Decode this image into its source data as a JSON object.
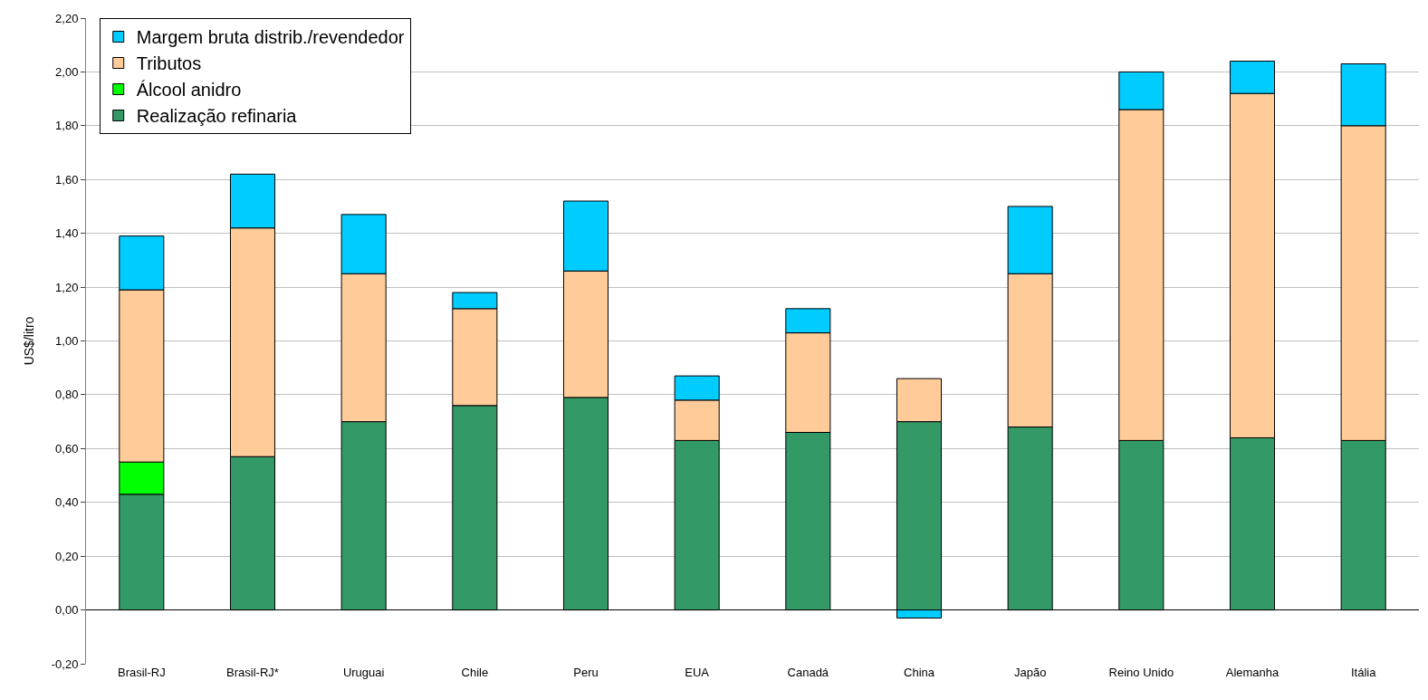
{
  "chart_data": {
    "type": "bar",
    "stacked": true,
    "ylabel": "US$/litro",
    "categories": [
      "Brasil-RJ",
      "Brasil-RJ*",
      "Uruguai",
      "Chile",
      "Peru",
      "EUA",
      "Canadá",
      "China",
      "Japão",
      "Reino Unido",
      "Alemanha",
      "Itália"
    ],
    "series": [
      {
        "name": "Realização refinaria",
        "color": "#339966",
        "values": [
          0.43,
          0.57,
          0.7,
          0.76,
          0.79,
          0.63,
          0.66,
          0.7,
          0.68,
          0.63,
          0.64,
          0.63
        ]
      },
      {
        "name": "Álcool anidro",
        "color": "#00ff00",
        "values": [
          0.12,
          null,
          null,
          null,
          null,
          null,
          null,
          null,
          null,
          null,
          null,
          null
        ]
      },
      {
        "name": "Tributos",
        "color": "#ffcc99",
        "values": [
          0.64,
          0.85,
          0.55,
          0.36,
          0.47,
          0.15,
          0.37,
          0.16,
          0.57,
          1.23,
          1.28,
          1.17
        ]
      },
      {
        "name": "Margem bruta distrib./revendedor",
        "color": "#00ccff",
        "values": [
          0.2,
          0.2,
          0.22,
          0.06,
          0.26,
          0.09,
          0.09,
          -0.03,
          0.25,
          0.14,
          0.12,
          0.23
        ]
      }
    ],
    "ylim": [
      -0.2,
      2.2
    ],
    "yticks": [
      {
        "value": -0.2,
        "label": "-0,20"
      },
      {
        "value": 0,
        "label": "0,00"
      },
      {
        "value": 0.2,
        "label": "0,20"
      },
      {
        "value": 0.4,
        "label": "0,40"
      },
      {
        "value": 0.6,
        "label": "0,60"
      },
      {
        "value": 0.8,
        "label": "0,80"
      },
      {
        "value": 1.0,
        "label": "1,00"
      },
      {
        "value": 1.2,
        "label": "1,20"
      },
      {
        "value": 1.4,
        "label": "1,40"
      },
      {
        "value": 1.6,
        "label": "1,60"
      },
      {
        "value": 1.8,
        "label": "1,80"
      },
      {
        "value": 2.0,
        "label": "2,00"
      },
      {
        "value": 2.2,
        "label": "2,20"
      }
    ],
    "grid": "y",
    "legend": "top left"
  }
}
